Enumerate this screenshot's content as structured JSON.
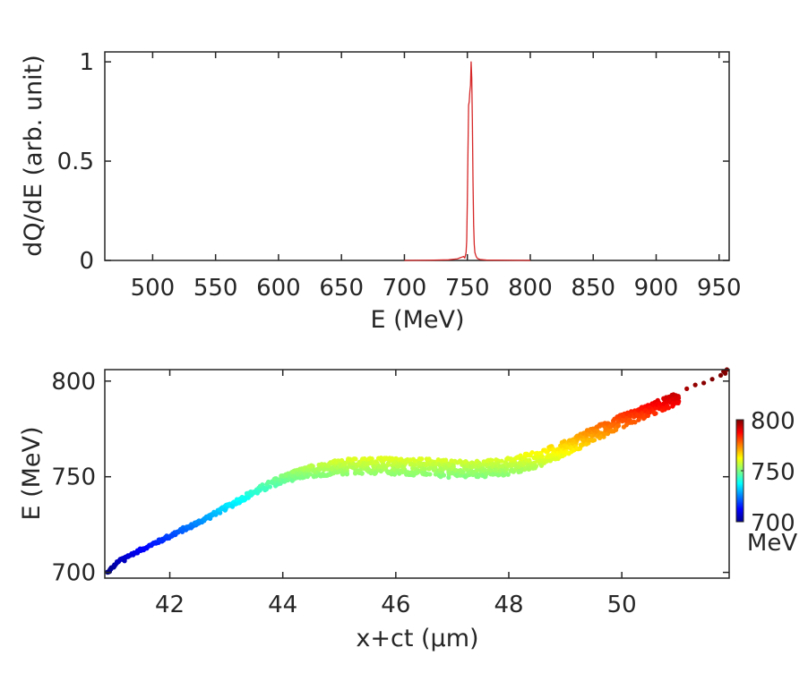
{
  "chart_data": [
    {
      "type": "line",
      "title": "",
      "xlabel": "E (MeV)",
      "ylabel": "dQ/dE (arb. unit)",
      "xlim": [
        462,
        958
      ],
      "ylim": [
        0,
        1.05
      ],
      "xticks": [
        500,
        550,
        600,
        650,
        700,
        750,
        800,
        850,
        900,
        950
      ],
      "yticks": [
        0,
        0.5,
        1
      ],
      "ytick_labels": [
        "0",
        "0.5",
        "1"
      ],
      "series": [
        {
          "name": "dQ/dE",
          "color": "#d62728",
          "x": [
            700,
            720,
            735,
            742,
            745,
            747,
            748,
            749,
            749.5,
            750,
            750.5,
            751,
            751.5,
            752,
            752.5,
            753,
            753.5,
            754,
            754.5,
            755,
            755.5,
            756,
            757,
            758,
            760,
            765,
            780,
            800
          ],
          "y": [
            0,
            0.001,
            0.003,
            0.008,
            0.015,
            0.02,
            0.012,
            0.04,
            0.1,
            0.3,
            0.55,
            0.78,
            0.8,
            0.85,
            0.88,
            1.0,
            0.92,
            0.7,
            0.4,
            0.18,
            0.08,
            0.04,
            0.02,
            0.01,
            0.005,
            0.002,
            0.001,
            0
          ]
        }
      ]
    },
    {
      "type": "scatter",
      "title": "",
      "xlabel": "x+ct (μm)",
      "ylabel": "E (MeV)",
      "xlim": [
        40.85,
        51.9
      ],
      "ylim": [
        697,
        806
      ],
      "xticks": [
        42,
        44,
        46,
        48,
        50
      ],
      "yticks": [
        700,
        750,
        800
      ],
      "colormap": "jet",
      "color_range": [
        700,
        800
      ],
      "centerline": {
        "x": [
          40.9,
          41.1,
          41.5,
          42.0,
          42.5,
          43.0,
          43.5,
          44.0,
          44.5,
          45.0,
          45.5,
          46.0,
          46.5,
          47.0,
          47.5,
          48.0,
          48.5,
          49.0,
          49.5,
          50.0,
          50.5,
          51.0
        ],
        "y": [
          700,
          706,
          712,
          719,
          726,
          734,
          742,
          749,
          753,
          755,
          756,
          755.5,
          755,
          754,
          754,
          755.5,
          759,
          765,
          772,
          779,
          785,
          791
        ]
      },
      "halfwidth": {
        "x": [
          40.9,
          42.0,
          43.0,
          44.0,
          45.0,
          46.0,
          47.0,
          48.0,
          49.0,
          50.0,
          51.0
        ],
        "y": [
          0.5,
          1,
          1.2,
          2.2,
          4,
          4.5,
          4.5,
          4.5,
          4,
          3.5,
          3
        ]
      },
      "outliers": {
        "x": [
          40.9,
          41.2,
          51.15,
          51.3,
          51.45,
          51.6,
          51.75,
          51.8,
          51.83,
          51.86
        ],
        "y": [
          700,
          706,
          796,
          798,
          799,
          801,
          803,
          805,
          804,
          806
        ]
      }
    }
  ],
  "colorbar": {
    "ticks": [
      700,
      750,
      800
    ],
    "unit": "MeV"
  }
}
